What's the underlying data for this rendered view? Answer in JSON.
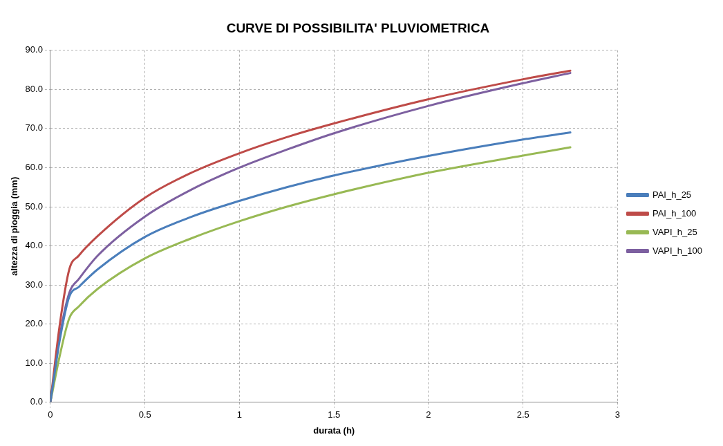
{
  "chart_data": {
    "type": "line",
    "title": "CURVE DI POSSIBILITA' PLUVIOMETRICA",
    "xlabel": "durata (h)",
    "ylabel": "altezza di pioggia (mm)",
    "x": [
      0,
      0.05,
      0.1,
      0.15,
      0.25,
      0.5,
      0.75,
      1,
      1.25,
      1.5,
      2,
      2.5,
      2.75
    ],
    "series": [
      {
        "name": "PAI_h_25",
        "color": "#4a7ebb",
        "values": [
          0,
          16,
          27,
          29.5,
          34,
          42.3,
          47.5,
          51.5,
          55,
          58,
          63,
          67.2,
          69
        ]
      },
      {
        "name": "PAI_h_100",
        "color": "#be4b48",
        "values": [
          0,
          20,
          34,
          37.5,
          42.5,
          52.3,
          58.8,
          63.7,
          67.8,
          71.3,
          77.5,
          82.6,
          84.8
        ]
      },
      {
        "name": "VAPI_h_25",
        "color": "#98b954",
        "values": [
          0,
          12,
          21.5,
          24.5,
          29,
          36.8,
          42,
          46.3,
          50,
          53.2,
          58.7,
          63.1,
          65.2
        ]
      },
      {
        "name": "VAPI_h_100",
        "color": "#7d60a0",
        "values": [
          0,
          17,
          28,
          31.5,
          37.5,
          47.5,
          54.5,
          60,
          64.6,
          68.8,
          75.8,
          81.6,
          84.2
        ]
      }
    ],
    "xlim": [
      0,
      3
    ],
    "xticks": [
      0,
      0.5,
      1,
      1.5,
      2,
      2.5,
      3
    ],
    "ylim": [
      0,
      90
    ],
    "yticks": [
      {
        "value": 0,
        "label": "0.0"
      },
      {
        "value": 10,
        "label": "10.0"
      },
      {
        "value": 20,
        "label": "20.0"
      },
      {
        "value": 30,
        "label": "30.0"
      },
      {
        "value": 40,
        "label": "40.0"
      },
      {
        "value": 50,
        "label": "50.0"
      },
      {
        "value": 60,
        "label": "60.0"
      },
      {
        "value": 70,
        "label": "70.0"
      },
      {
        "value": 80,
        "label": "80.0"
      },
      {
        "value": 90,
        "label": "90.0"
      }
    ],
    "grid": true,
    "legend": "right",
    "marker": "none",
    "line_style": "solid"
  }
}
